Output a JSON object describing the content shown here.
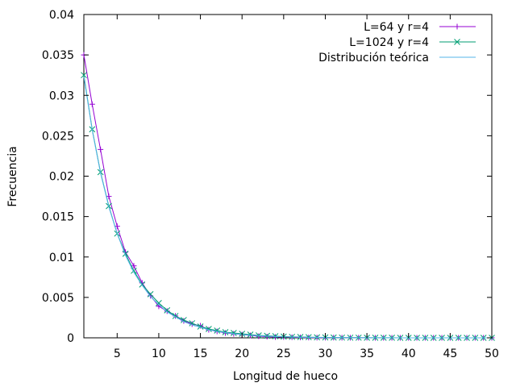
{
  "chart_data": {
    "type": "line",
    "title": "",
    "xlabel": "Longitud de hueco",
    "ylabel": "Frecuencia",
    "xlim": [
      1,
      50
    ],
    "ylim": [
      0,
      0.04
    ],
    "x_ticks": [
      "5",
      "10",
      "15",
      "20",
      "25",
      "30",
      "35",
      "40",
      "45",
      "50"
    ],
    "y_ticks": [
      "0",
      "0.005",
      "0.01",
      "0.015",
      "0.02",
      "0.025",
      "0.03",
      "0.035",
      "0.04"
    ],
    "grid": false,
    "legend_position": "top-right",
    "x": [
      1,
      2,
      3,
      4,
      5,
      6,
      7,
      8,
      9,
      10,
      11,
      12,
      13,
      14,
      15,
      16,
      17,
      18,
      19,
      20,
      21,
      22,
      23,
      24,
      25,
      26,
      27,
      28,
      29,
      30,
      31,
      32,
      33,
      34,
      35,
      36,
      37,
      38,
      39,
      40,
      41,
      42,
      43,
      44,
      45,
      46,
      47,
      48,
      49,
      50
    ],
    "series": [
      {
        "name": "L=64 y r=4",
        "color": "#9400d3",
        "marker": "plus",
        "values": [
          0.035,
          0.0289,
          0.0233,
          0.0175,
          0.0138,
          0.0106,
          0.0089,
          0.0068,
          0.0052,
          0.0039,
          0.0033,
          0.0027,
          0.0021,
          0.0017,
          0.0015,
          0.001,
          0.0008,
          0.0006,
          0.0005,
          0.0004,
          0.0003,
          0.0002,
          0.00015,
          0.0001,
          0.0001,
          7e-05,
          5e-05,
          4e-05,
          3e-05,
          2e-05,
          2e-05,
          1e-05,
          1e-05,
          1e-05,
          1e-05,
          0,
          0,
          0,
          0,
          0,
          0,
          0,
          0,
          0,
          0,
          0,
          0,
          0,
          0,
          0
        ]
      },
      {
        "name": "L=1024 y r=4",
        "color": "#009e73",
        "marker": "cross",
        "values": [
          0.0325,
          0.0258,
          0.0205,
          0.0163,
          0.0129,
          0.0104,
          0.0083,
          0.0066,
          0.0054,
          0.0043,
          0.0034,
          0.0027,
          0.0022,
          0.0018,
          0.0014,
          0.0011,
          0.0009,
          0.0007,
          0.0006,
          0.0005,
          0.0004,
          0.0003,
          0.00025,
          0.0002,
          0.00015,
          0.00012,
          0.0001,
          8e-05,
          6e-05,
          5e-05,
          4e-05,
          3e-05,
          2e-05,
          2e-05,
          1e-05,
          1e-05,
          1e-05,
          1e-05,
          0,
          0,
          0,
          0,
          0,
          0,
          0,
          0,
          0,
          0,
          0,
          0
        ]
      },
      {
        "name": "Distribución teórica",
        "color": "#56b4e9",
        "marker": "none",
        "values": [
          0.0323,
          0.0257,
          0.0204,
          0.0162,
          0.0129,
          0.0102,
          0.0081,
          0.0065,
          0.0051,
          0.0041,
          0.0032,
          0.0026,
          0.002,
          0.0016,
          0.0013,
          0.001,
          0.0008,
          0.00065,
          0.00051,
          0.00041,
          0.00032,
          0.00026,
          0.0002,
          0.00016,
          0.00013,
          0.0001,
          8e-05,
          6e-05,
          5e-05,
          4e-05,
          3e-05,
          2.5e-05,
          2e-05,
          1.6e-05,
          1.3e-05,
          1e-05,
          8e-06,
          6e-06,
          5e-06,
          4e-06,
          3e-06,
          2.5e-06,
          2e-06,
          1.6e-06,
          1.3e-06,
          1e-06,
          8e-07,
          6e-07,
          5e-07,
          4e-07
        ]
      }
    ]
  }
}
